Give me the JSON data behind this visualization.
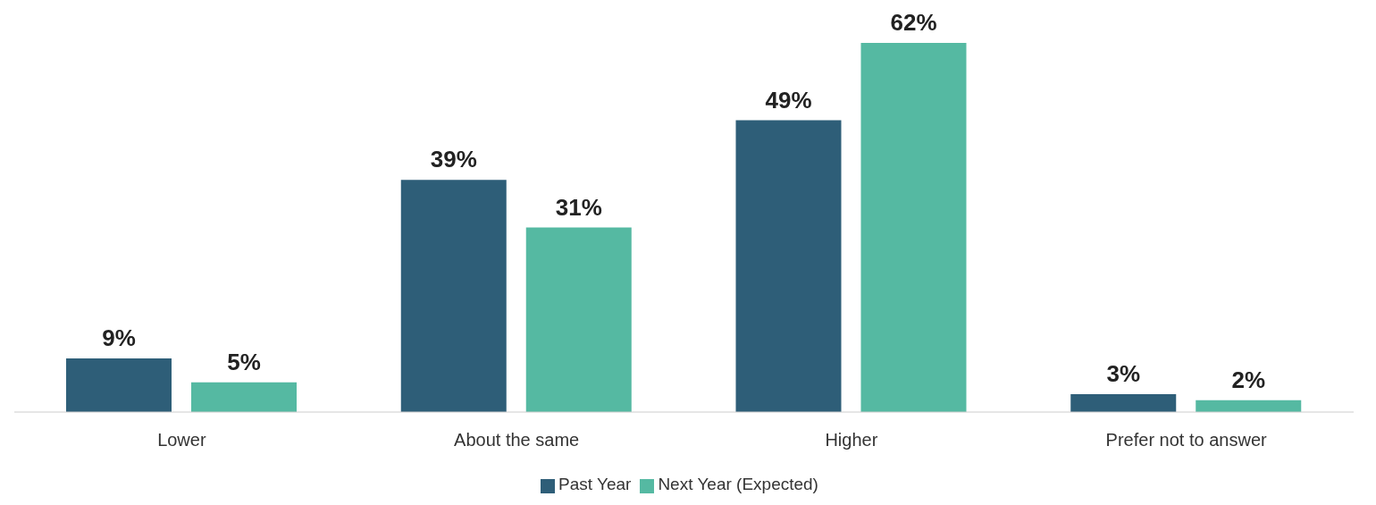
{
  "chart_data": {
    "type": "bar",
    "categories": [
      "Lower",
      "About the same",
      "Higher",
      "Prefer not to answer"
    ],
    "series": [
      {
        "name": "Past Year",
        "color": "#2e5e78",
        "values": [
          9,
          39,
          49,
          3
        ],
        "value_labels": [
          "9%",
          "39%",
          "49%",
          "3%"
        ]
      },
      {
        "name": "Next Year (Expected)",
        "color": "#55b9a2",
        "values": [
          5,
          31,
          62,
          2
        ],
        "value_labels": [
          "5%",
          "31%",
          "62%",
          "2%"
        ]
      }
    ],
    "legend": "bottom"
  }
}
